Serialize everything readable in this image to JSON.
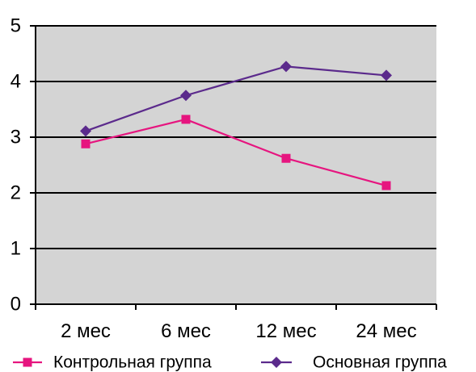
{
  "chart_data": {
    "type": "line",
    "categories": [
      "2 мес",
      "6 мес",
      "12 мес",
      "24 мес"
    ],
    "ylim": [
      0,
      5
    ],
    "y_ticks": [
      "0",
      "1",
      "2",
      "3",
      "4",
      "5"
    ],
    "grid": "horizontal major lines",
    "legend_placement": "bottom",
    "plot_background": "#d4d4d4",
    "series": [
      {
        "name": "Контрольная группа",
        "color": "#e6157f",
        "marker": "square",
        "values": [
          2.88,
          3.32,
          2.62,
          2.13
        ]
      },
      {
        "name": "Основная группа",
        "color": "#5b2a8c",
        "marker": "diamond",
        "values": [
          3.11,
          3.75,
          4.27,
          4.11
        ]
      }
    ]
  }
}
